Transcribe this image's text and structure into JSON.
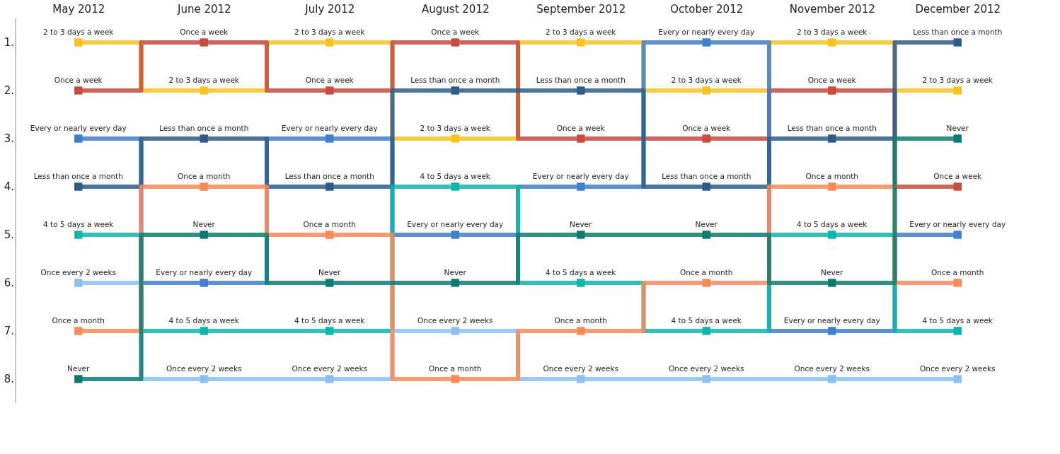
{
  "chart_data": {
    "type": "step",
    "categories": [
      "May 2012",
      "June 2012",
      "July 2012",
      "August 2012",
      "September 2012",
      "October 2012",
      "November 2012",
      "December 2012"
    ],
    "series": [
      {
        "name": "2 to 3 days a week",
        "color": "#f5c324",
        "values": [
          1,
          2,
          1,
          3,
          1,
          2,
          1,
          2
        ]
      },
      {
        "name": "Once a week",
        "color": "#c84b3e",
        "values": [
          2,
          1,
          2,
          1,
          3,
          3,
          2,
          4
        ]
      },
      {
        "name": "Every or nearly every day",
        "color": "#3f7fcc",
        "values": [
          3,
          6,
          3,
          5,
          4,
          1,
          7,
          5
        ]
      },
      {
        "name": "Less than once a month",
        "color": "#2e5c8a",
        "values": [
          4,
          3,
          4,
          2,
          2,
          4,
          3,
          1
        ]
      },
      {
        "name": "4 to 5 days a week",
        "color": "#0fb5a8",
        "values": [
          5,
          7,
          7,
          4,
          6,
          7,
          5,
          7
        ]
      },
      {
        "name": "Once every 2 weeks",
        "color": "#8dbff5",
        "values": [
          6,
          8,
          8,
          7,
          8,
          8,
          8,
          8
        ]
      },
      {
        "name": "Once a month",
        "color": "#f98a5a",
        "values": [
          7,
          4,
          5,
          8,
          7,
          6,
          4,
          6
        ]
      },
      {
        "name": "Never",
        "color": "#0e7b70",
        "values": [
          8,
          5,
          6,
          6,
          5,
          5,
          6,
          3
        ]
      }
    ],
    "ylim": [
      8.5,
      0.5
    ],
    "yticks": [
      {
        "value": 1,
        "label": "1."
      },
      {
        "value": 2,
        "label": "2."
      },
      {
        "value": 3,
        "label": "3."
      },
      {
        "value": 4,
        "label": "4."
      },
      {
        "value": 5,
        "label": "5."
      },
      {
        "value": 6,
        "label": "6."
      },
      {
        "value": 7,
        "label": "7."
      },
      {
        "value": 8,
        "label": "8."
      }
    ],
    "marker": "square",
    "line_style": "solid",
    "grid": false,
    "legend": false
  }
}
